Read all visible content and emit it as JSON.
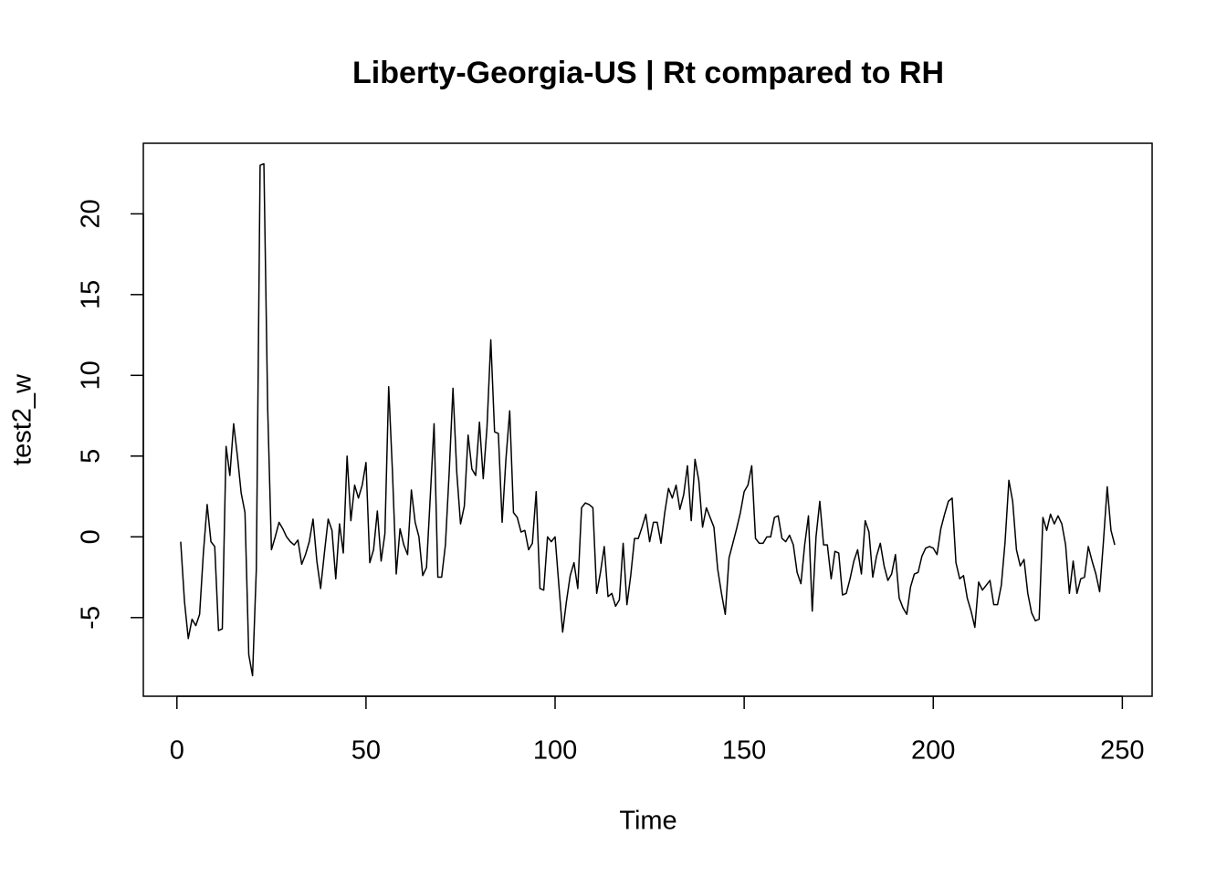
{
  "chart_data": {
    "type": "line",
    "title": "Liberty-Georgia-US | Rt compared to RH",
    "x_label": "Time",
    "y_label": "test2_w",
    "xlim": [
      -8.88,
      257.88
    ],
    "ylim": [
      -9.87,
      24.37
    ],
    "xticks": [
      0,
      50,
      100,
      150,
      200,
      250
    ],
    "yticks": [
      -5,
      0,
      5,
      10,
      15,
      20
    ],
    "x": [
      1,
      2,
      3,
      4,
      5,
      6,
      7,
      8,
      9,
      10,
      11,
      12,
      13,
      14,
      15,
      16,
      17,
      18,
      19,
      20,
      21,
      22,
      23,
      24,
      25,
      26,
      27,
      28,
      29,
      30,
      31,
      32,
      33,
      34,
      35,
      36,
      37,
      38,
      39,
      40,
      41,
      42,
      43,
      44,
      45,
      46,
      47,
      48,
      49,
      50,
      51,
      52,
      53,
      54,
      55,
      56,
      57,
      58,
      59,
      60,
      61,
      62,
      63,
      64,
      65,
      66,
      67,
      68,
      69,
      70,
      71,
      72,
      73,
      74,
      75,
      76,
      77,
      78,
      79,
      80,
      81,
      82,
      83,
      84,
      85,
      86,
      87,
      88,
      89,
      90,
      91,
      92,
      93,
      94,
      95,
      96,
      97,
      98,
      99,
      100,
      101,
      102,
      103,
      104,
      105,
      106,
      107,
      108,
      109,
      110,
      111,
      112,
      113,
      114,
      115,
      116,
      117,
      118,
      119,
      120,
      121,
      122,
      123,
      124,
      125,
      126,
      127,
      128,
      129,
      130,
      131,
      132,
      133,
      134,
      135,
      136,
      137,
      138,
      139,
      140,
      141,
      142,
      143,
      144,
      145,
      146,
      147,
      148,
      149,
      150,
      151,
      152,
      153,
      154,
      155,
      156,
      157,
      158,
      159,
      160,
      161,
      162,
      163,
      164,
      165,
      166,
      167,
      168,
      169,
      170,
      171,
      172,
      173,
      174,
      175,
      176,
      177,
      178,
      179,
      180,
      181,
      182,
      183,
      184,
      185,
      186,
      187,
      188,
      189,
      190,
      191,
      192,
      193,
      194,
      195,
      196,
      197,
      198,
      199,
      200,
      201,
      202,
      203,
      204,
      205,
      206,
      207,
      208,
      209,
      210,
      211,
      212,
      213,
      214,
      215,
      216,
      217,
      218,
      219,
      220,
      221,
      222,
      223,
      224,
      225,
      226,
      227,
      228,
      229,
      230,
      231,
      232,
      233,
      234,
      235,
      236,
      237,
      238,
      239,
      240,
      241,
      242,
      243,
      244,
      245,
      246,
      247,
      248
    ],
    "series": [
      {
        "color": "#000000",
        "values": [
          -0.3,
          -4,
          -6.3,
          -5.1,
          -5.5,
          -4.8,
          -1,
          2,
          -0.3,
          -0.6,
          -5.8,
          -5.7,
          5.6,
          3.8,
          7,
          5,
          2.7,
          1.5,
          -7.3,
          -8.6,
          -2,
          23,
          23.1,
          8,
          -0.8,
          0,
          0.9,
          0.5,
          0,
          -0.3,
          -0.5,
          -0.2,
          -1.7,
          -1.1,
          -0.3,
          1.1,
          -1.5,
          -3.2,
          -1,
          1.1,
          0.4,
          -2.6,
          0.8,
          -1,
          5,
          1,
          3.2,
          2.4,
          3.2,
          4.6,
          -1.6,
          -0.8,
          1.6,
          -1.5,
          0.2,
          9.3,
          4,
          -2.3,
          0.5,
          -0.5,
          -1.1,
          2.9,
          0.9,
          0,
          -2.4,
          -1.9,
          2.5,
          7,
          -2.5,
          -2.5,
          -0.5,
          4,
          9.2,
          4,
          0.8,
          1.9,
          6.3,
          4.2,
          3.8,
          7.1,
          3.6,
          6.8,
          12.2,
          6.5,
          6.4,
          0.9,
          4.8,
          7.8,
          1.5,
          1.2,
          0.3,
          0.4,
          -0.8,
          -0.4,
          2.8,
          -3.2,
          -3.3,
          0,
          -0.3,
          0,
          -3,
          -5.9,
          -4,
          -2.4,
          -1.6,
          -3.2,
          1.8,
          2.1,
          2,
          1.8,
          -3.5,
          -2.2,
          -0.6,
          -3.7,
          -3.5,
          -4.3,
          -3.9,
          -0.4,
          -4.2,
          -2.4,
          -0.1,
          -0.1,
          0.6,
          1.4,
          -0.3,
          0.9,
          0.9,
          -0.4,
          1.5,
          3,
          2.4,
          3.2,
          1.7,
          2.6,
          4.4,
          1,
          4.8,
          3.5,
          0.6,
          1.8,
          1.2,
          0.6,
          -2,
          -3.5,
          -4.8,
          -1.3,
          -0.4,
          0.5,
          1.5,
          2.8,
          3.2,
          4.4,
          -0.1,
          -0.4,
          -0.4,
          0,
          0,
          1.2,
          1.3,
          -0.1,
          -0.3,
          0.1,
          -0.5,
          -2.2,
          -2.9,
          -0.5,
          1.3,
          -4.6,
          0,
          2.2,
          -0.5,
          -0.5,
          -2.6,
          -0.9,
          -1,
          -3.6,
          -3.5,
          -2.6,
          -1.5,
          -0.8,
          -2.3,
          1,
          0.3,
          -2.5,
          -1.2,
          -0.4,
          -1.8,
          -2.7,
          -2.3,
          -1.1,
          -3.8,
          -4.4,
          -4.8,
          -3.1,
          -2.3,
          -2.2,
          -1.2,
          -0.7,
          -0.6,
          -0.7,
          -1.1,
          0.5,
          1.4,
          2.2,
          2.4,
          -1.6,
          -2.6,
          -2.4,
          -3.8,
          -4.6,
          -5.6,
          -2.8,
          -3.3,
          -3,
          -2.7,
          -4.2,
          -4.2,
          -3,
          -0.3,
          3.5,
          2.2,
          -0.8,
          -1.8,
          -1.4,
          -3.5,
          -4.7,
          -5.2,
          -5.1,
          1.2,
          0.4,
          1.4,
          0.8,
          1.3,
          0.8,
          -0.5,
          -3.5,
          -1.5,
          -3.5,
          -2.6,
          -2.5,
          -0.6,
          -1.5,
          -2.3,
          -3.4,
          -0.3,
          3.1,
          0.4,
          -0.5
        ]
      }
    ]
  }
}
